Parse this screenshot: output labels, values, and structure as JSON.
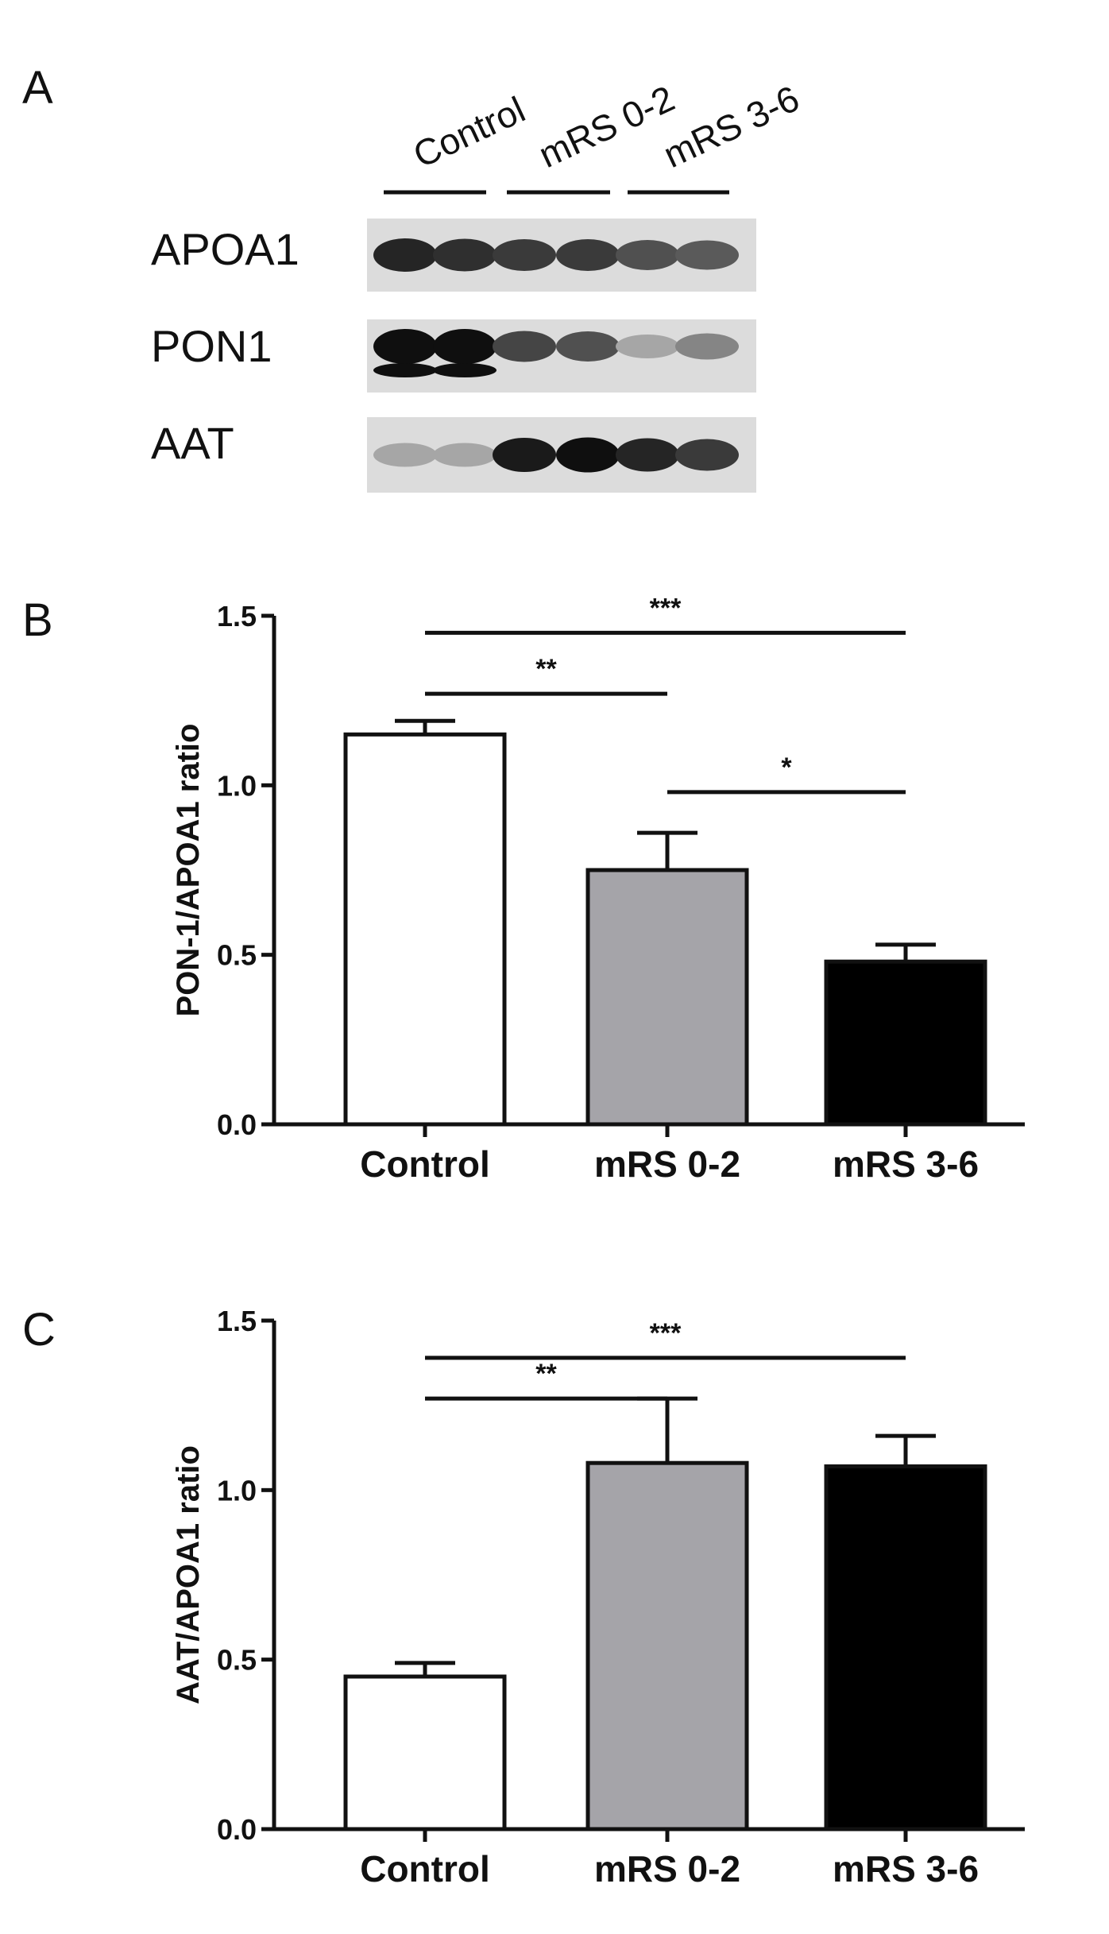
{
  "panels": {
    "a": "A",
    "b": "B",
    "c": "C"
  },
  "western_blot": {
    "lanes": [
      "Control",
      "mRS 0-2",
      "mRS 3-6"
    ],
    "rows": [
      {
        "name": "APOA1",
        "intensity": [
          0.9,
          0.85,
          0.8,
          0.8,
          0.7,
          0.65
        ],
        "double": false
      },
      {
        "name": "PON1",
        "intensity": [
          1.0,
          1.0,
          0.75,
          0.7,
          0.3,
          0.45
        ],
        "double": true
      },
      {
        "name": "AAT",
        "intensity": [
          0.3,
          0.3,
          0.95,
          1.0,
          0.9,
          0.8
        ],
        "double": false
      }
    ]
  },
  "chart_data": [
    {
      "type": "bar",
      "title": "",
      "xlabel": "",
      "ylabel": "PON-1/APOA1 ratio",
      "categories": [
        "Control",
        "mRS 0-2",
        "mRS 3-6"
      ],
      "values": [
        1.15,
        0.75,
        0.48
      ],
      "errors": [
        0.04,
        0.11,
        0.05
      ],
      "bar_colors": [
        "#ffffff",
        "#a5a4a9",
        "#000000"
      ],
      "ylim": [
        0,
        1.5
      ],
      "yticks": [
        "0.0",
        "0.5",
        "1.0",
        "1.5"
      ],
      "significance": [
        {
          "from": 0,
          "to": 2,
          "label": "***",
          "level": 1.45
        },
        {
          "from": 0,
          "to": 1,
          "label": "**",
          "level": 1.27
        },
        {
          "from": 1,
          "to": 2,
          "label": "*",
          "level": 0.98
        }
      ]
    },
    {
      "type": "bar",
      "title": "",
      "xlabel": "",
      "ylabel": "AAT/APOA1 ratio",
      "categories": [
        "Control",
        "mRS 0-2",
        "mRS 3-6"
      ],
      "values": [
        0.45,
        1.08,
        1.07
      ],
      "errors": [
        0.04,
        0.19,
        0.09
      ],
      "bar_colors": [
        "#ffffff",
        "#a5a4a9",
        "#000000"
      ],
      "ylim": [
        0,
        1.5
      ],
      "yticks": [
        "0.0",
        "0.5",
        "1.0",
        "1.5"
      ],
      "significance": [
        {
          "from": 0,
          "to": 2,
          "label": "***",
          "level": 1.39
        },
        {
          "from": 0,
          "to": 1,
          "label": "**",
          "level": 1.27
        }
      ]
    }
  ]
}
